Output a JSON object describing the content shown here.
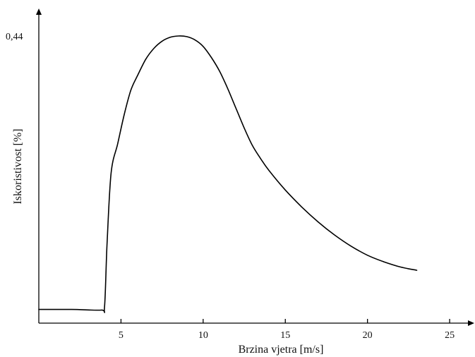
{
  "chart_data": {
    "type": "line",
    "title": "",
    "xlabel": "Brzina vjetra [m/s]",
    "ylabel": "Iskoristivost [%]",
    "xlim": [
      0,
      26.5
    ],
    "ylim": [
      0,
      0.48
    ],
    "x_ticks": [
      {
        "value": 5,
        "label": "5"
      },
      {
        "value": 10,
        "label": "10"
      },
      {
        "value": 15,
        "label": "15"
      },
      {
        "value": 20,
        "label": "20"
      },
      {
        "value": 25,
        "label": "25"
      }
    ],
    "y_ticks": [
      {
        "value": 0.44,
        "label": "0,44"
      }
    ],
    "grid": false,
    "legend": "none",
    "series": [
      {
        "color": "#000000",
        "x": [
          0,
          2,
          3.8,
          4.0,
          4.15,
          4.4,
          4.8,
          5.2,
          5.6,
          6.0,
          6.5,
          7.0,
          7.5,
          8.0,
          8.5,
          9.0,
          9.5,
          10.0,
          10.5,
          11.0,
          11.5,
          12.0,
          12.5,
          13.0,
          13.5,
          14.0,
          15.0,
          16.0,
          17.0,
          18.0,
          19.0,
          20.0,
          21.0,
          22.0,
          23.0
        ],
        "y": [
          0.021,
          0.021,
          0.02,
          0.025,
          0.12,
          0.23,
          0.275,
          0.32,
          0.357,
          0.379,
          0.404,
          0.421,
          0.432,
          0.438,
          0.44,
          0.439,
          0.434,
          0.424,
          0.407,
          0.386,
          0.359,
          0.329,
          0.299,
          0.272,
          0.252,
          0.234,
          0.204,
          0.178,
          0.155,
          0.135,
          0.118,
          0.104,
          0.094,
          0.086,
          0.081
        ]
      }
    ]
  }
}
